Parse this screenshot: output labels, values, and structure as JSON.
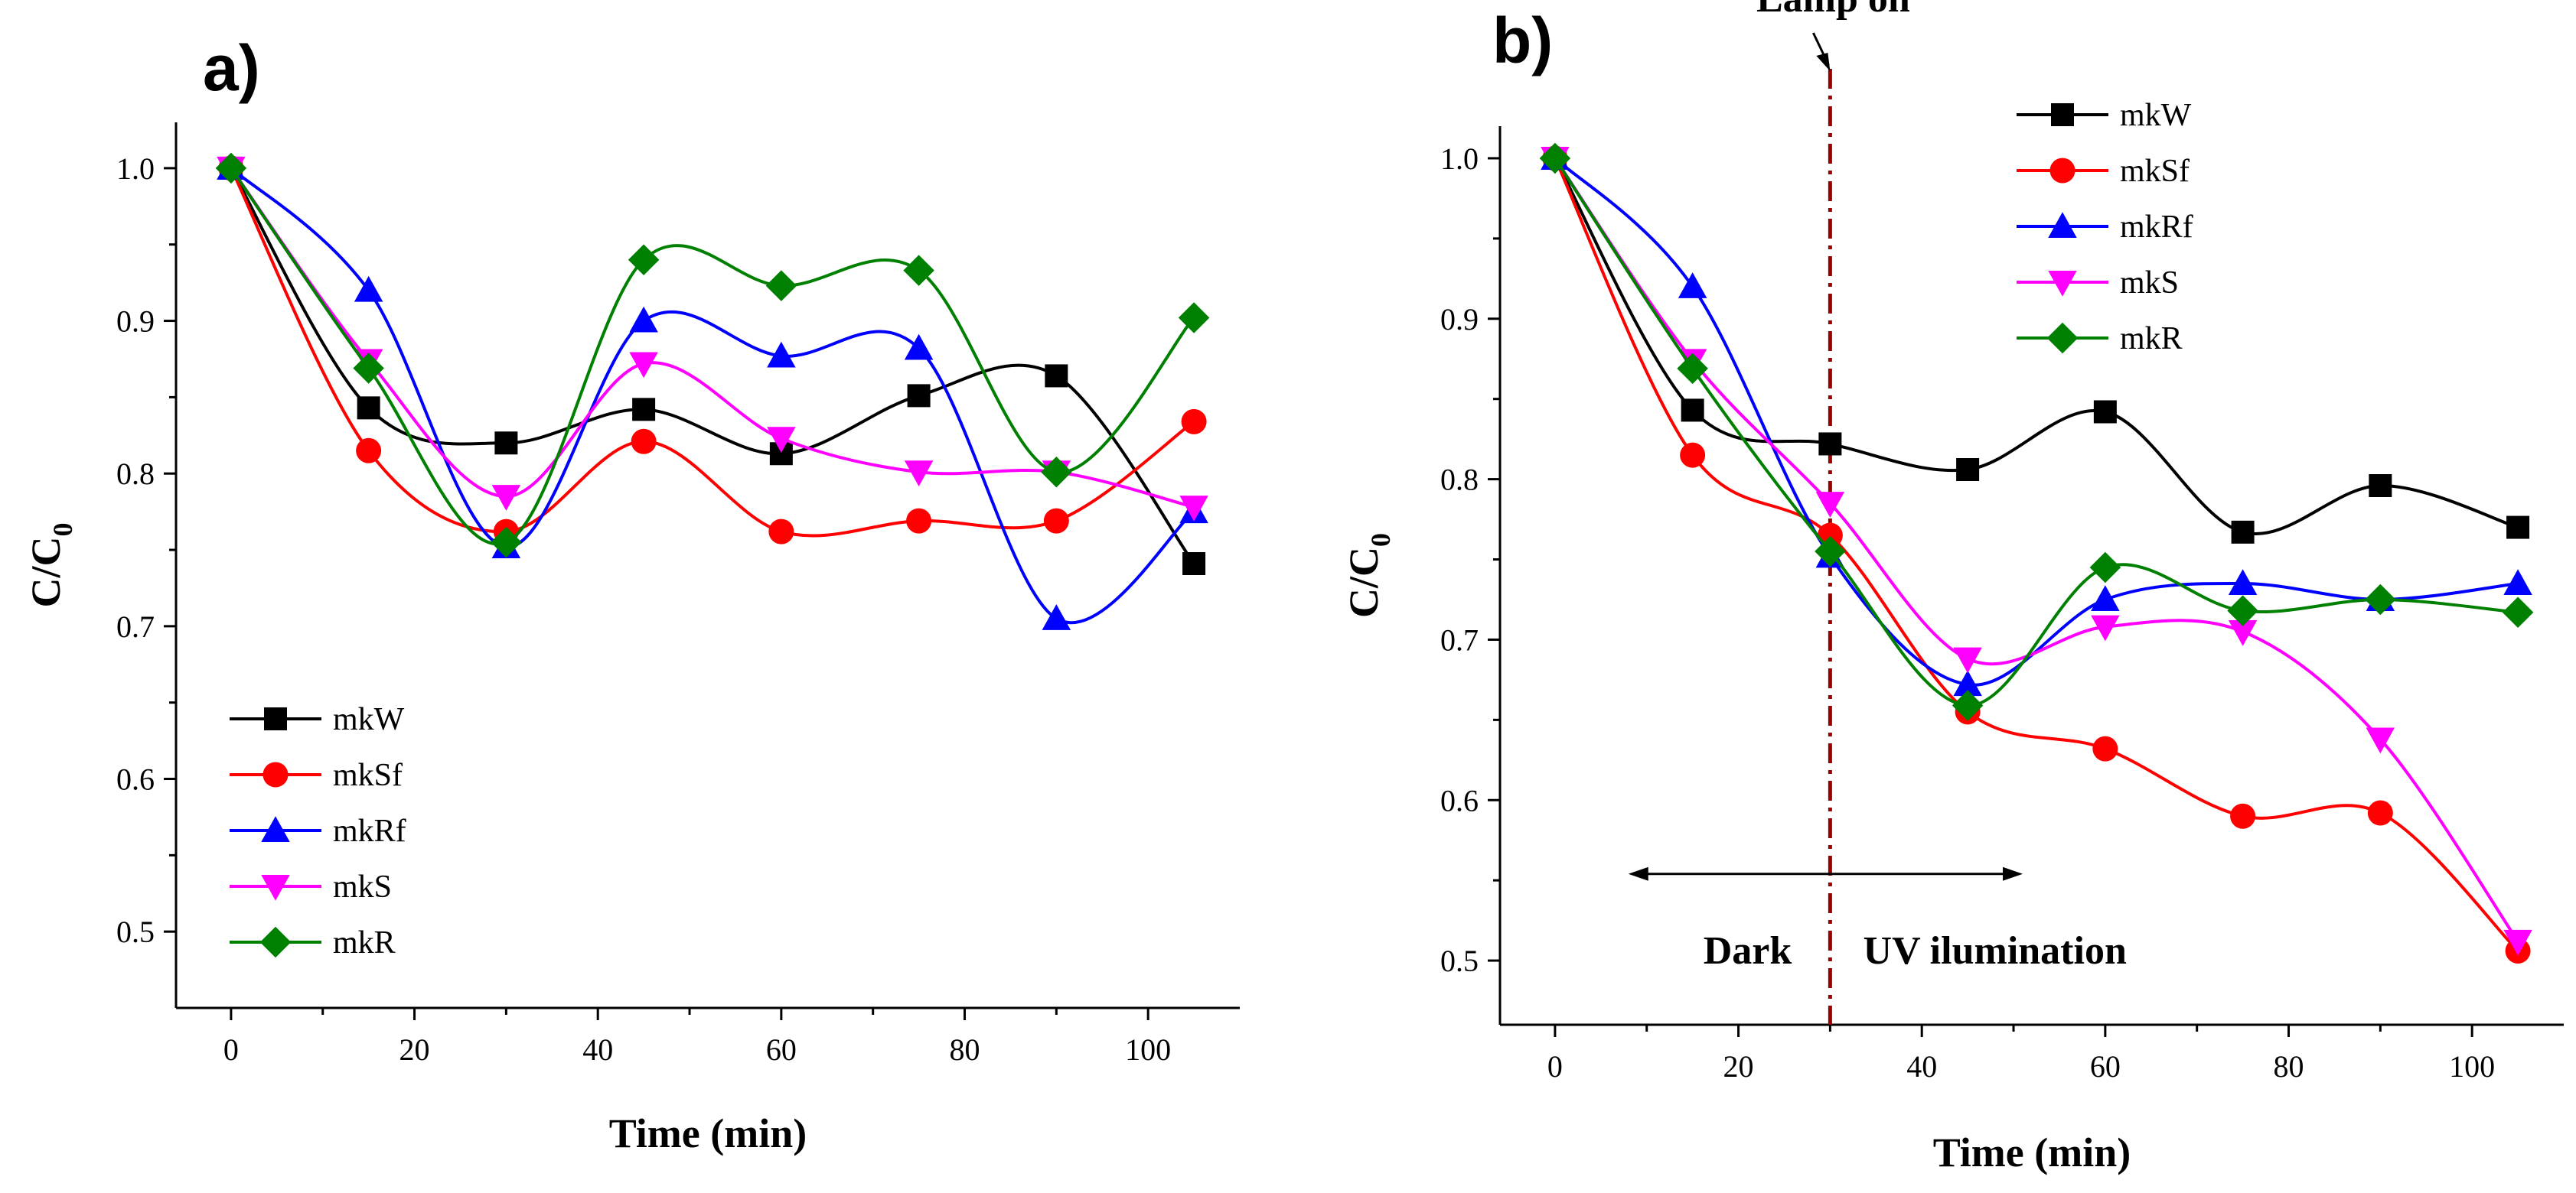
{
  "chart_data": [
    {
      "type": "line",
      "panel_label": "a)",
      "title": "",
      "xlabel": "Time (min)",
      "ylabel_main": "C/C",
      "ylabel_sub": "0",
      "xlim": [
        -6,
        110
      ],
      "ylim": [
        0.45,
        1.03
      ],
      "xticks": [
        0,
        20,
        40,
        60,
        80,
        100
      ],
      "xtick_labels": [
        "0",
        "20",
        "40",
        "60",
        "80",
        "100"
      ],
      "yticks": [
        0.5,
        0.6,
        0.7,
        0.8,
        0.9,
        1.0
      ],
      "ytick_labels": [
        "0.5",
        "0.6",
        "0.7",
        "0.8",
        "0.9",
        "1.0"
      ],
      "legend_position": "bottom-left",
      "x": [
        0,
        15,
        30,
        45,
        60,
        75,
        90,
        105
      ],
      "series": [
        {
          "name": "mkW",
          "color": "#000000",
          "marker": "square",
          "values": [
            1.0,
            0.843,
            0.82,
            0.842,
            0.813,
            0.851,
            0.864,
            0.741
          ]
        },
        {
          "name": "mkSf",
          "color": "#ff0000",
          "marker": "circle",
          "values": [
            1.0,
            0.815,
            0.762,
            0.821,
            0.762,
            0.769,
            0.769,
            0.834
          ]
        },
        {
          "name": "mkRf",
          "color": "#0000ff",
          "marker": "triangle-up",
          "values": [
            1.0,
            0.92,
            0.752,
            0.9,
            0.877,
            0.882,
            0.705,
            0.775
          ]
        },
        {
          "name": "mkS",
          "color": "#ff00ff",
          "marker": "triangle-down",
          "values": [
            1.0,
            0.874,
            0.785,
            0.872,
            0.823,
            0.801,
            0.801,
            0.778
          ]
        },
        {
          "name": "mkR",
          "color": "#008000",
          "marker": "diamond",
          "values": [
            1.0,
            0.869,
            0.755,
            0.94,
            0.923,
            0.933,
            0.801,
            0.902
          ]
        }
      ]
    },
    {
      "type": "line",
      "panel_label": "b)",
      "title": "",
      "xlabel": "Time (min)",
      "ylabel_main": "C/C",
      "ylabel_sub": "0",
      "xlim": [
        -6,
        110
      ],
      "ylim": [
        0.46,
        1.02
      ],
      "xticks": [
        0,
        20,
        40,
        60,
        80,
        100
      ],
      "xtick_labels": [
        "0",
        "20",
        "40",
        "60",
        "80",
        "100"
      ],
      "yticks": [
        0.5,
        0.6,
        0.7,
        0.8,
        0.9,
        1.0
      ],
      "ytick_labels": [
        "0.5",
        "0.6",
        "0.7",
        "0.8",
        "0.9",
        "1.0"
      ],
      "legend_position": "top-right",
      "x": [
        0,
        15,
        30,
        45,
        60,
        75,
        90,
        105
      ],
      "series": [
        {
          "name": "mkW",
          "color": "#000000",
          "marker": "square",
          "values": [
            1.0,
            0.843,
            0.822,
            0.806,
            0.842,
            0.767,
            0.796,
            0.77
          ]
        },
        {
          "name": "mkSf",
          "color": "#ff0000",
          "marker": "circle",
          "values": [
            1.0,
            0.815,
            0.765,
            0.655,
            0.632,
            0.59,
            0.592,
            0.506
          ]
        },
        {
          "name": "mkRf",
          "color": "#0000ff",
          "marker": "triangle-up",
          "values": [
            1.0,
            0.92,
            0.752,
            0.672,
            0.725,
            0.735,
            0.725,
            0.735
          ]
        },
        {
          "name": "mkS",
          "color": "#ff00ff",
          "marker": "triangle-down",
          "values": [
            1.0,
            0.874,
            0.785,
            0.688,
            0.708,
            0.705,
            0.638,
            0.512
          ]
        },
        {
          "name": "mkR",
          "color": "#008000",
          "marker": "diamond",
          "values": [
            1.0,
            0.869,
            0.755,
            0.659,
            0.745,
            0.718,
            0.725,
            0.717
          ]
        }
      ],
      "annotations": {
        "lamp_on_label": "Lamp on",
        "lamp_on_x": 30,
        "dark_label": "Dark",
        "uv_label": "UV ilumination",
        "arrow_range": [
          8,
          51
        ],
        "arrow_y": 0.554
      }
    }
  ]
}
